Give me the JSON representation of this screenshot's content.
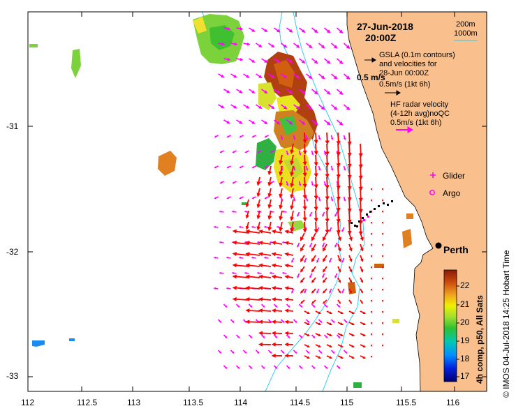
{
  "header": {
    "date": "27-Jun-2018",
    "time": "20:00Z"
  },
  "bathymetry_legend": {
    "contour_1": "200m",
    "contour_2": "1000m"
  },
  "gsla_legend": {
    "line1": "GSLA (0.1m contours)",
    "line2": "and velocities for",
    "line3": "28-Jun 00:00Z",
    "line4": "0.5m/s (1kt 6h)",
    "scale_label": "0.5 m/s"
  },
  "hf_legend": {
    "line1": "HF radar velocity",
    "line2": "(4-12h avg)noQC",
    "line3": "0.5m/s (1kt 6h)"
  },
  "markers": {
    "glider": "Glider",
    "argo": "Argo",
    "perth": "Perth"
  },
  "axes": {
    "x_ticks": [
      "112",
      "112.5",
      "113",
      "113.5",
      "114",
      "114.5",
      "115",
      "115.5",
      "116"
    ],
    "y_ticks": [
      "-31",
      "-32",
      "-33"
    ],
    "x_range": [
      112,
      116.3
    ],
    "y_range": [
      -33.1,
      -30.08
    ]
  },
  "colorbar": {
    "ticks": [
      "22",
      "21",
      "20",
      "19",
      "18",
      "17"
    ],
    "range": [
      16.6,
      22.6
    ],
    "title": "4h comp, p50, All Sats"
  },
  "credit": "© IMOS 04-Jul-2018 14:25 Hobart Time",
  "colors": {
    "land": "#f9c08d",
    "hf_arrow": "#ff0000",
    "gsla_arrow": "#ff00ff",
    "contour": "#33ccee",
    "glider": "#ff00ff",
    "argo": "#ff00ff"
  }
}
